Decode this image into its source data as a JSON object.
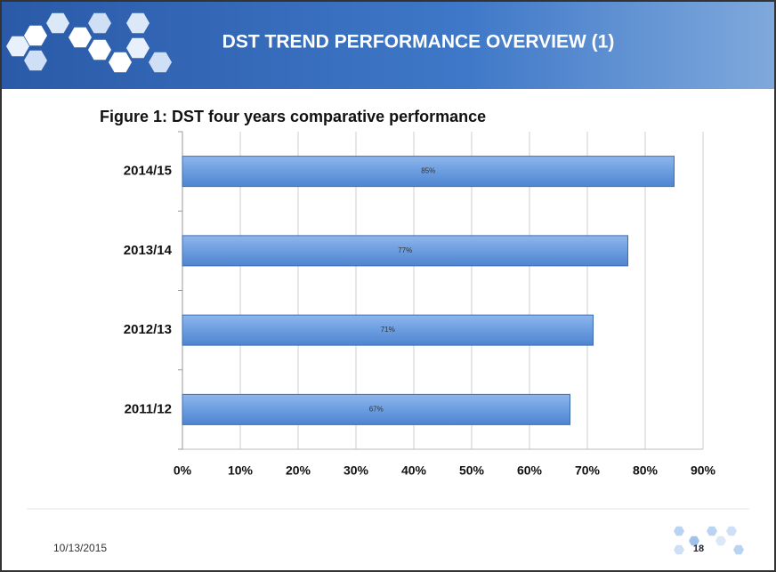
{
  "header": {
    "title": "DST TREND PERFORMANCE OVERVIEW (1)"
  },
  "chart_data": {
    "type": "bar",
    "orientation": "horizontal",
    "title": "Figure 1: DST four  years comparative performance",
    "categories": [
      "2011/12",
      "2012/13",
      "2013/14",
      "2014/15"
    ],
    "values": [
      67,
      71,
      77,
      85
    ],
    "value_labels": [
      "67%",
      "71%",
      "77%",
      "85%"
    ],
    "color": "#6b9de0",
    "xlim": [
      0,
      90
    ],
    "xticks": [
      {
        "value": 0,
        "label": "0%"
      },
      {
        "value": 10,
        "label": "10%"
      },
      {
        "value": 20,
        "label": "20%"
      },
      {
        "value": 30,
        "label": "30%"
      },
      {
        "value": 40,
        "label": "40%"
      },
      {
        "value": 50,
        "label": "50%"
      },
      {
        "value": 60,
        "label": "60%"
      },
      {
        "value": 70,
        "label": "70%"
      },
      {
        "value": 80,
        "label": "80%"
      },
      {
        "value": 90,
        "label": "90%"
      }
    ],
    "grid": true
  },
  "footer": {
    "date": "10/13/2015",
    "page": "18"
  }
}
